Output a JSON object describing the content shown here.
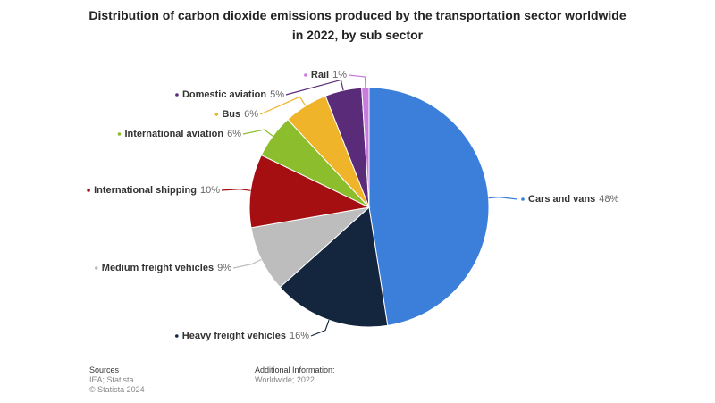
{
  "chart_data": {
    "type": "pie",
    "title": "Distribution of carbon dioxide emissions produced by the transportation sector worldwide in 2022, by sub sector",
    "categories": [
      "Cars and vans",
      "Heavy freight vehicles",
      "Medium freight vehicles",
      "International shipping",
      "International aviation",
      "Bus",
      "Domestic aviation",
      "Rail"
    ],
    "values": [
      48,
      16,
      9,
      10,
      6,
      6,
      5,
      1
    ],
    "value_labels": [
      "48%",
      "16%",
      "9%",
      "10%",
      "6%",
      "6%",
      "5%",
      "1%"
    ],
    "colors": [
      "#3b7fdb",
      "#14253e",
      "#bdbdbd",
      "#a50f12",
      "#8cbd2c",
      "#f0b42a",
      "#5a2b78",
      "#c87ddc"
    ]
  },
  "footer": {
    "sources_title": "Sources",
    "sources": [
      "IEA; Statista",
      "© Statista 2024"
    ],
    "info_title": "Additional Information:",
    "info": "Worldwide; 2022"
  }
}
